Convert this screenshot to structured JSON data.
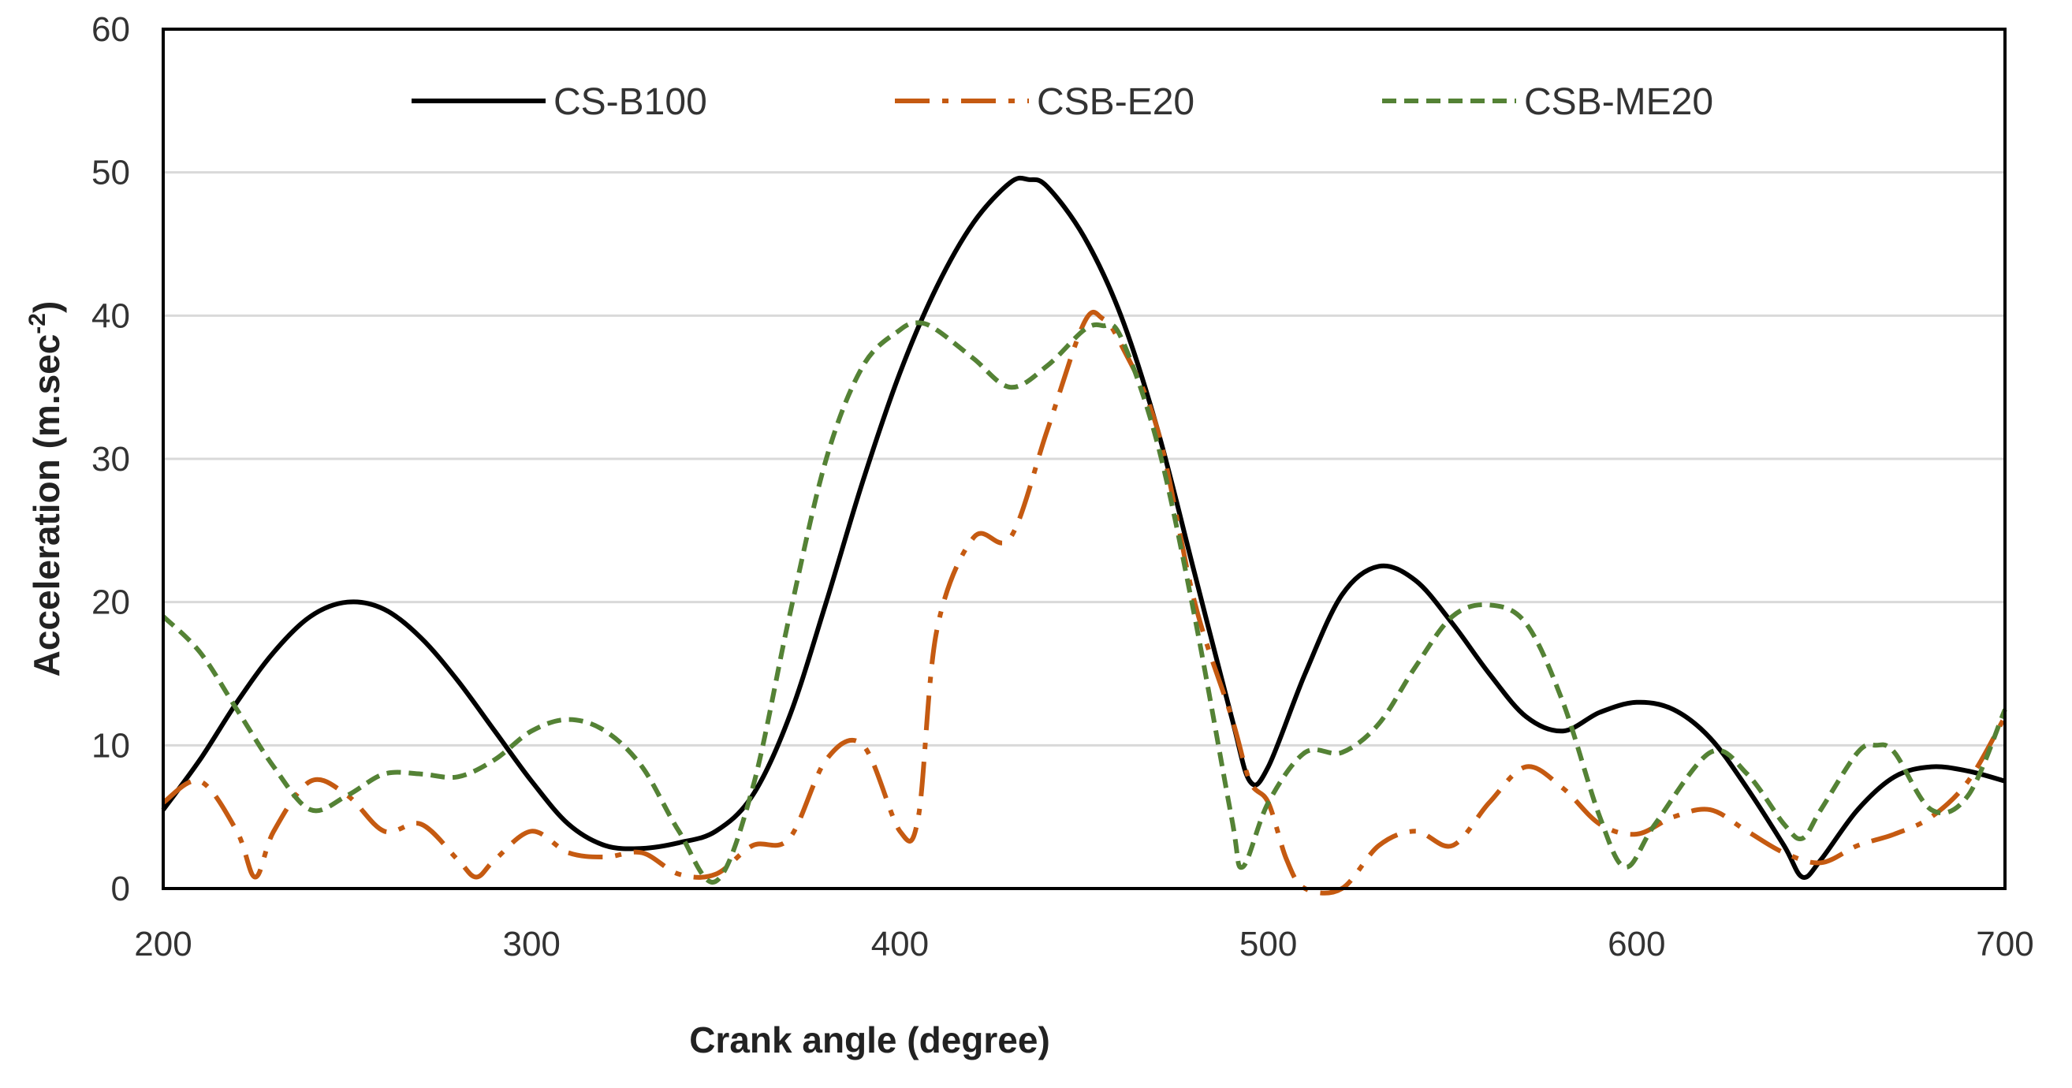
{
  "chart_data": {
    "type": "line",
    "title": "",
    "xlabel": "Crank angle (degree)",
    "ylabel_main": "Acceleration (m.sec",
    "ylabel_sup": "-2",
    "ylabel_close": ")",
    "xlim": [
      200,
      700
    ],
    "ylim": [
      0,
      60
    ],
    "xticks": [
      "200",
      "300",
      "400",
      "500",
      "600",
      "700"
    ],
    "yticks": [
      "0",
      "10",
      "20",
      "30",
      "40",
      "50",
      "60"
    ],
    "grid": true,
    "legend_position": "top",
    "series": [
      {
        "name": "CS-B100",
        "color": "#000000",
        "dash": "solid",
        "points": [
          [
            200,
            5.5
          ],
          [
            210,
            9
          ],
          [
            220,
            13
          ],
          [
            230,
            16.5
          ],
          [
            240,
            19
          ],
          [
            250,
            20
          ],
          [
            260,
            19.5
          ],
          [
            270,
            17.5
          ],
          [
            280,
            14.5
          ],
          [
            290,
            11
          ],
          [
            300,
            7.5
          ],
          [
            310,
            4.5
          ],
          [
            320,
            3
          ],
          [
            330,
            2.8
          ],
          [
            340,
            3.2
          ],
          [
            350,
            4
          ],
          [
            360,
            6.5
          ],
          [
            370,
            12
          ],
          [
            380,
            20
          ],
          [
            390,
            28.5
          ],
          [
            400,
            36
          ],
          [
            410,
            42
          ],
          [
            420,
            46.5
          ],
          [
            430,
            49.3
          ],
          [
            435,
            49.5
          ],
          [
            440,
            49
          ],
          [
            450,
            45.5
          ],
          [
            460,
            40
          ],
          [
            470,
            32
          ],
          [
            480,
            22
          ],
          [
            490,
            12
          ],
          [
            495,
            7.5
          ],
          [
            500,
            8.5
          ],
          [
            510,
            15
          ],
          [
            520,
            20.5
          ],
          [
            530,
            22.5
          ],
          [
            540,
            21.5
          ],
          [
            550,
            18.5
          ],
          [
            560,
            15
          ],
          [
            570,
            12
          ],
          [
            580,
            11
          ],
          [
            590,
            12.3
          ],
          [
            600,
            13
          ],
          [
            610,
            12.5
          ],
          [
            620,
            10.5
          ],
          [
            630,
            7
          ],
          [
            640,
            3
          ],
          [
            645,
            0.8
          ],
          [
            650,
            2
          ],
          [
            660,
            5.5
          ],
          [
            670,
            7.8
          ],
          [
            680,
            8.5
          ],
          [
            690,
            8.2
          ],
          [
            700,
            7.5
          ]
        ]
      },
      {
        "name": "CSB-E20",
        "color": "#c55a11",
        "dash": "dashdot",
        "points": [
          [
            200,
            6
          ],
          [
            210,
            7.5
          ],
          [
            220,
            4
          ],
          [
            225,
            0.8
          ],
          [
            230,
            4
          ],
          [
            240,
            7.5
          ],
          [
            250,
            6.5
          ],
          [
            260,
            4
          ],
          [
            270,
            4.5
          ],
          [
            280,
            2
          ],
          [
            285,
            0.8
          ],
          [
            290,
            2
          ],
          [
            300,
            4
          ],
          [
            310,
            2.5
          ],
          [
            320,
            2.2
          ],
          [
            330,
            2.5
          ],
          [
            340,
            1
          ],
          [
            350,
            1
          ],
          [
            360,
            3
          ],
          [
            370,
            3.5
          ],
          [
            380,
            9
          ],
          [
            390,
            10
          ],
          [
            400,
            4
          ],
          [
            405,
            5
          ],
          [
            410,
            18
          ],
          [
            420,
            24.5
          ],
          [
            430,
            24.5
          ],
          [
            440,
            32
          ],
          [
            450,
            39.5
          ],
          [
            455,
            39.8
          ],
          [
            460,
            38
          ],
          [
            470,
            32
          ],
          [
            480,
            20
          ],
          [
            490,
            12
          ],
          [
            495,
            7.5
          ],
          [
            500,
            6
          ],
          [
            505,
            2
          ],
          [
            510,
            0
          ],
          [
            520,
            0
          ],
          [
            530,
            3
          ],
          [
            540,
            4
          ],
          [
            550,
            3
          ],
          [
            560,
            6
          ],
          [
            570,
            8.5
          ],
          [
            580,
            7
          ],
          [
            590,
            4.5
          ],
          [
            600,
            3.8
          ],
          [
            610,
            5
          ],
          [
            620,
            5.5
          ],
          [
            630,
            4
          ],
          [
            640,
            2.5
          ],
          [
            650,
            1.8
          ],
          [
            660,
            3
          ],
          [
            670,
            3.8
          ],
          [
            680,
            5
          ],
          [
            690,
            7.5
          ],
          [
            700,
            12
          ]
        ]
      },
      {
        "name": "CSB-ME20",
        "color": "#548235",
        "dash": "dashed",
        "points": [
          [
            200,
            19
          ],
          [
            210,
            16.5
          ],
          [
            220,
            12.5
          ],
          [
            230,
            8.5
          ],
          [
            240,
            5.5
          ],
          [
            250,
            6.5
          ],
          [
            260,
            8
          ],
          [
            270,
            8
          ],
          [
            280,
            7.8
          ],
          [
            290,
            9
          ],
          [
            300,
            11
          ],
          [
            310,
            11.8
          ],
          [
            320,
            11
          ],
          [
            330,
            8.5
          ],
          [
            340,
            4
          ],
          [
            350,
            0.5
          ],
          [
            360,
            7
          ],
          [
            370,
            19
          ],
          [
            380,
            30
          ],
          [
            390,
            36.5
          ],
          [
            400,
            39
          ],
          [
            405,
            39.5
          ],
          [
            410,
            39
          ],
          [
            420,
            37
          ],
          [
            430,
            35
          ],
          [
            440,
            36.5
          ],
          [
            450,
            39
          ],
          [
            455,
            39.3
          ],
          [
            460,
            38.5
          ],
          [
            470,
            31
          ],
          [
            480,
            19
          ],
          [
            490,
            5
          ],
          [
            493,
            1.5
          ],
          [
            500,
            6
          ],
          [
            510,
            9.5
          ],
          [
            520,
            9.5
          ],
          [
            530,
            11.5
          ],
          [
            540,
            15.5
          ],
          [
            550,
            19
          ],
          [
            560,
            19.8
          ],
          [
            570,
            18.5
          ],
          [
            580,
            13
          ],
          [
            590,
            5
          ],
          [
            597,
            1.5
          ],
          [
            605,
            4.5
          ],
          [
            620,
            9.5
          ],
          [
            630,
            8
          ],
          [
            640,
            4.5
          ],
          [
            645,
            3.5
          ],
          [
            650,
            5.5
          ],
          [
            660,
            9.5
          ],
          [
            665,
            10
          ],
          [
            670,
            9.5
          ],
          [
            680,
            5.5
          ],
          [
            690,
            6.5
          ],
          [
            700,
            12.5
          ]
        ]
      }
    ]
  }
}
